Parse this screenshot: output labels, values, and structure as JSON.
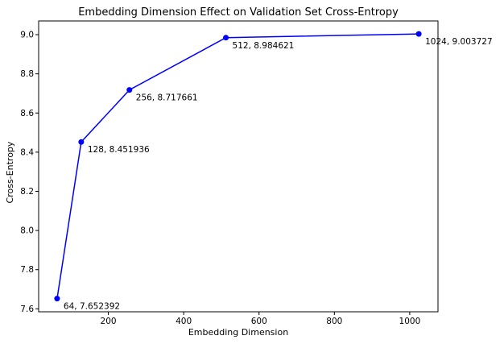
{
  "chart_data": {
    "type": "line",
    "title": "Embedding Dimension Effect on Validation Set Cross-Entropy",
    "xlabel": "Embedding Dimension",
    "ylabel": "Cross-Entropy",
    "xlim": [
      15,
      1075
    ],
    "ylim": [
      7.585,
      9.07
    ],
    "xticks": [
      200,
      400,
      600,
      800,
      1000
    ],
    "yticks": [
      7.6,
      7.8,
      8.0,
      8.2,
      8.4,
      8.6,
      8.8,
      9.0
    ],
    "grid": false,
    "series": [
      {
        "color": "#0000ff",
        "points": [
          {
            "x": 64,
            "y": 7.652392,
            "label": "64, 7.652392"
          },
          {
            "x": 128,
            "y": 8.451936,
            "label": "128, 8.451936"
          },
          {
            "x": 256,
            "y": 8.717661,
            "label": "256, 8.717661"
          },
          {
            "x": 512,
            "y": 8.984621,
            "label": "512, 8.984621"
          },
          {
            "x": 1024,
            "y": 9.003727,
            "label": "1024, 9.003727"
          }
        ]
      }
    ]
  }
}
